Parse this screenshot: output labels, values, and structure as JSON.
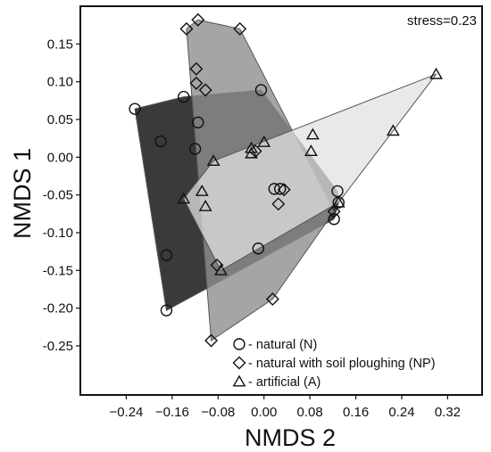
{
  "chart_data": {
    "type": "scatter",
    "title": "",
    "xlabel": "NMDS 2",
    "ylabel": "NMDS 1",
    "xlim": [
      -0.32,
      0.38
    ],
    "ylim": [
      -0.315,
      0.2
    ],
    "xticks": [
      -0.24,
      -0.16,
      -0.08,
      0.0,
      0.08,
      0.16,
      0.24,
      0.32
    ],
    "xtick_labels": [
      "−0.24",
      "−0.16",
      "−0.08",
      "0.00",
      "0.08",
      "0.16",
      "0.24",
      "0.32"
    ],
    "yticks": [
      0.15,
      0.1,
      0.05,
      0.0,
      -0.05,
      -0.1,
      -0.15,
      -0.2,
      -0.25
    ],
    "ytick_labels": [
      "0.15",
      "0.10",
      "0.05",
      "0.00",
      "-0.05",
      "-0.10",
      "-0.15",
      "-0.20",
      "-0.25"
    ],
    "annotation": "stress=0.23",
    "grid": false,
    "legend_position": "bottom-center",
    "series": [
      {
        "name": "- natural (N)",
        "marker": "circle",
        "hull_fill": "#3a3a3a",
        "hull_opacity": 1.0,
        "points": [
          [
            -0.225,
            0.064
          ],
          [
            -0.18,
            0.021
          ],
          [
            -0.14,
            0.08
          ],
          [
            -0.12,
            0.011
          ],
          [
            -0.115,
            0.046
          ],
          [
            -0.17,
            -0.13
          ],
          [
            -0.17,
            -0.203
          ],
          [
            -0.005,
            0.089
          ],
          [
            0.018,
            -0.042
          ],
          [
            0.028,
            -0.042
          ],
          [
            -0.01,
            -0.121
          ],
          [
            0.128,
            -0.045
          ],
          [
            0.122,
            -0.082
          ],
          [
            0.13,
            -0.06
          ]
        ]
      },
      {
        "name": "- natural with soil ploughing (NP)",
        "marker": "diamond",
        "hull_fill": "#8e8e8e",
        "hull_opacity": 0.8,
        "points": [
          [
            -0.135,
            0.17
          ],
          [
            -0.115,
            0.182
          ],
          [
            -0.042,
            0.17
          ],
          [
            -0.118,
            0.117
          ],
          [
            -0.118,
            0.098
          ],
          [
            -0.102,
            0.089
          ],
          [
            -0.015,
            0.008
          ],
          [
            0.025,
            -0.062
          ],
          [
            0.035,
            -0.043
          ],
          [
            0.015,
            -0.188
          ],
          [
            -0.082,
            -0.143
          ],
          [
            -0.092,
            -0.243
          ],
          [
            0.122,
            -0.072
          ]
        ]
      },
      {
        "name": "- artificial (A)",
        "marker": "triangle",
        "hull_fill": "#e2e2e2",
        "hull_opacity": 0.75,
        "points": [
          [
            0.3,
            0.11
          ],
          [
            0.225,
            0.035
          ],
          [
            0.085,
            0.03
          ],
          [
            0.082,
            0.008
          ],
          [
            0.0,
            0.02
          ],
          [
            -0.022,
            0.012
          ],
          [
            -0.022,
            0.005
          ],
          [
            -0.088,
            -0.005
          ],
          [
            -0.14,
            -0.055
          ],
          [
            -0.108,
            -0.045
          ],
          [
            -0.102,
            -0.065
          ],
          [
            -0.075,
            -0.15
          ],
          [
            0.13,
            -0.06
          ]
        ]
      }
    ]
  }
}
